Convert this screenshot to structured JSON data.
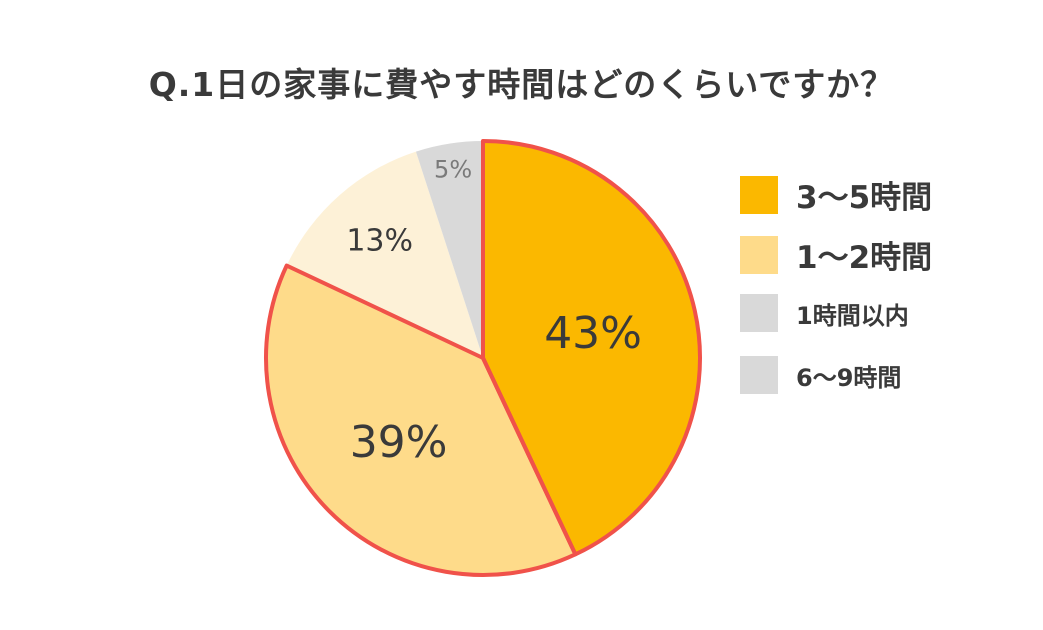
{
  "chart_data": {
    "type": "pie",
    "title": "Q.1日の家事に費やす時間はどのくらいですか？",
    "start_angle": "12 o'clock",
    "direction": "clockwise",
    "slice_border_color": "#f0524a",
    "slices": [
      {
        "label": "3〜5時間",
        "value": 43,
        "value_label": "43%",
        "color": "#fbb800",
        "label_color": "#3a3a3a",
        "bordered": true
      },
      {
        "label": "1〜2時間",
        "value": 39,
        "value_label": "39%",
        "color": "#fedb8a",
        "label_color": "#3a3a3a",
        "bordered": true
      },
      {
        "label": "6〜9時間",
        "value": 13,
        "value_label": "13%",
        "color": "#fdf1d7",
        "label_color": "#3a3a3a",
        "bordered": false
      },
      {
        "label": "1時間以内",
        "value": 5,
        "value_label": "5%",
        "color": "#d9d9d9",
        "label_color": "#7a7a7a",
        "bordered": false
      }
    ],
    "legend": {
      "position": "right",
      "items": [
        {
          "label": "3〜5時間",
          "color": "#fbb800",
          "size": "large"
        },
        {
          "label": "1〜2時間",
          "color": "#fedb8a",
          "size": "large"
        },
        {
          "label": "1時間以内",
          "color": "#d9d9d9",
          "size": "small"
        },
        {
          "label": "6〜9時間",
          "color": "#d9d9d9",
          "size": "small"
        }
      ]
    }
  }
}
